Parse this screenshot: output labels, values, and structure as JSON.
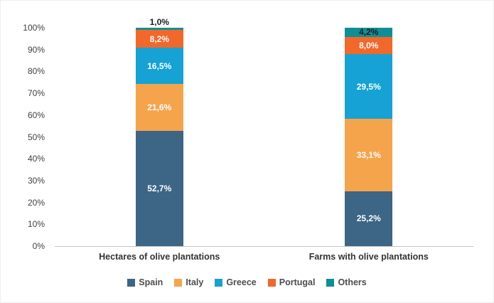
{
  "chart_data": {
    "type": "bar",
    "subtype": "stacked-percent-column",
    "title": "",
    "categories": [
      "Hectares of olive plantations",
      "Farms with olive plantations"
    ],
    "series": [
      {
        "name": "Spain",
        "color": "#3d6586",
        "values": [
          52.7,
          25.2
        ],
        "labels": [
          "52,7%",
          "25,2%"
        ]
      },
      {
        "name": "Italy",
        "color": "#f6a44c",
        "values": [
          21.6,
          33.1
        ],
        "labels": [
          "21,6%",
          "33,1%"
        ]
      },
      {
        "name": "Greece",
        "color": "#16a2d4",
        "values": [
          16.5,
          29.5
        ],
        "labels": [
          "16,5%",
          "29,5%"
        ]
      },
      {
        "name": "Portugal",
        "color": "#f2682a",
        "values": [
          8.2,
          8.0
        ],
        "labels": [
          "8,2%",
          "8,0%"
        ]
      },
      {
        "name": "Others",
        "color": "#0e8f97",
        "values": [
          1.0,
          4.2
        ],
        "labels": [
          "1,0%",
          "4,2%"
        ]
      }
    ],
    "y_axis": {
      "min": 0,
      "max": 100,
      "ticks": [
        "0%",
        "10%",
        "20%",
        "30%",
        "40%",
        "50%",
        "60%",
        "70%",
        "80%",
        "90%",
        "100%"
      ]
    },
    "legend": [
      "Spain",
      "Italy",
      "Greece",
      "Portugal",
      "Others"
    ],
    "legend_position": "bottom",
    "grid": false,
    "label_text_colors": {
      "inside": "#ffffff",
      "small_segment": "#1a1a1a"
    }
  }
}
